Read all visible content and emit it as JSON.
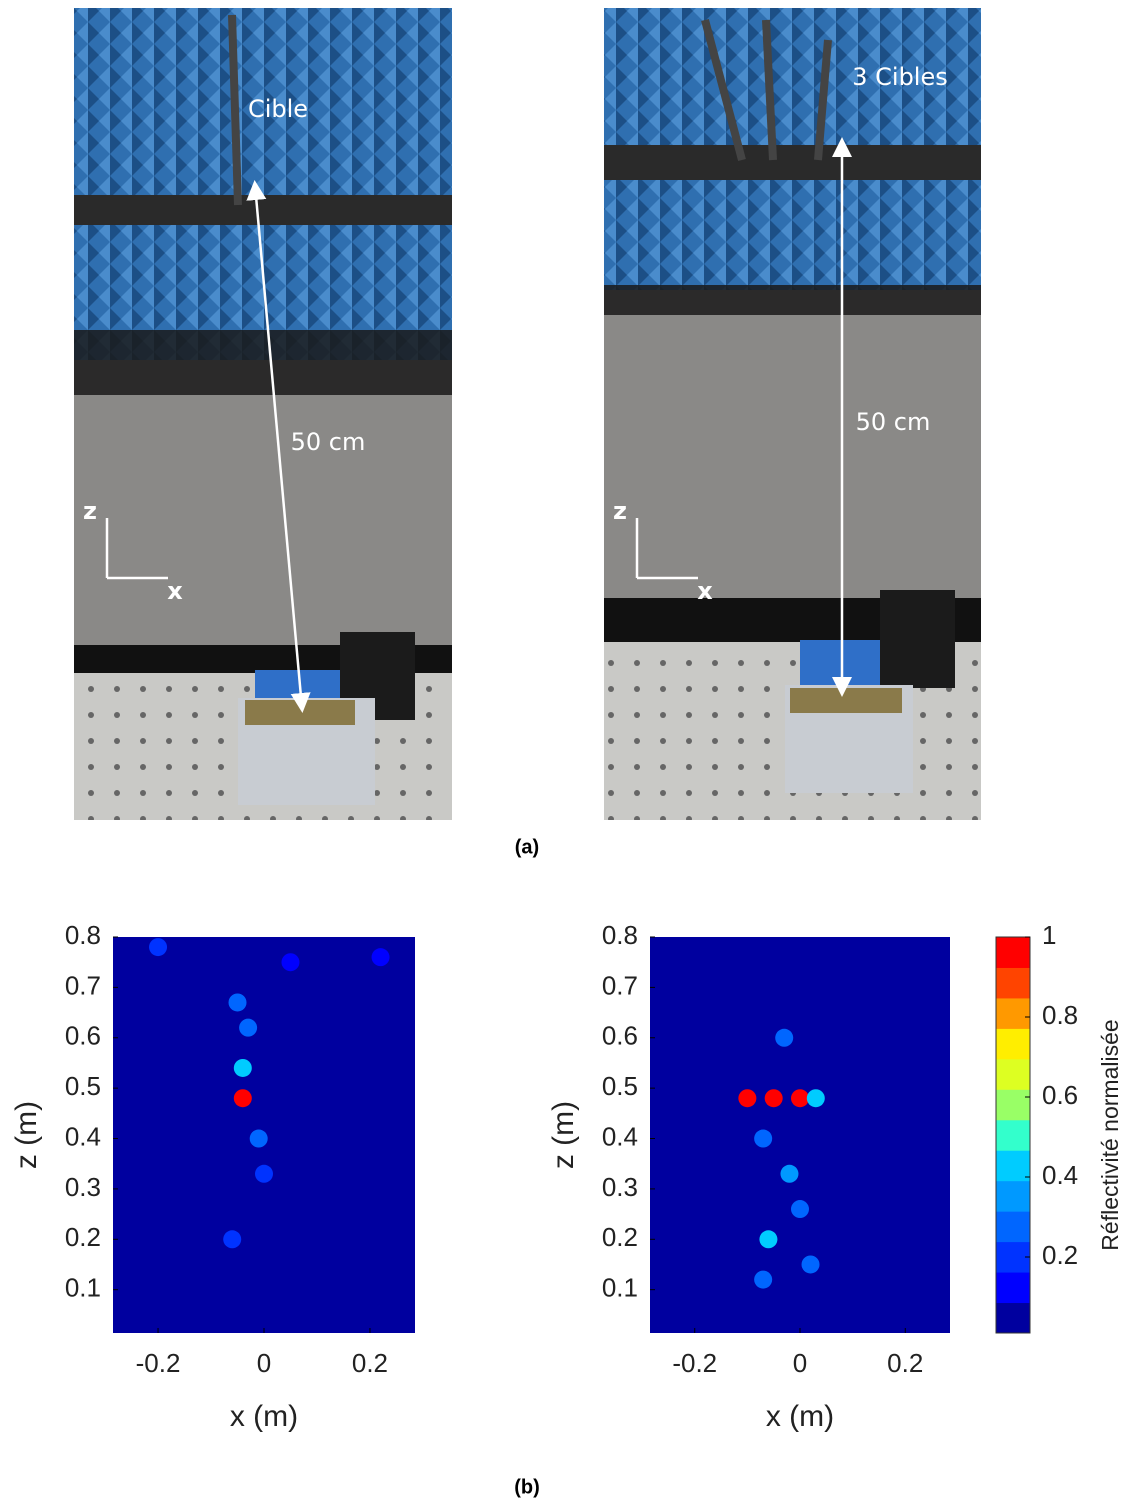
{
  "photos": [
    {
      "target_label": "Cible",
      "distance_label": "50 cm",
      "z_axis": "z",
      "x_axis": "x"
    },
    {
      "target_label": "3 Cibles",
      "distance_label": "50 cm",
      "z_axis": "z",
      "x_axis": "x"
    }
  ],
  "caption_a": "(a)",
  "chart_data": [
    {
      "type": "heatmap",
      "xlabel": "x (m)",
      "ylabel": "z (m)",
      "xlim": [
        -0.285,
        0.285
      ],
      "ylim": [
        0.014,
        0.8
      ],
      "xticks": [
        -0.2,
        0,
        0.2
      ],
      "yticks": [
        0.1,
        0.2,
        0.3,
        0.4,
        0.5,
        0.6,
        0.7,
        0.8
      ],
      "spots": [
        {
          "x": -0.04,
          "z": 0.48,
          "value": 1
        },
        {
          "x": -0.04,
          "z": 0.54,
          "value": 0.45
        },
        {
          "x": -0.05,
          "z": 0.67,
          "value": 0.3
        },
        {
          "x": -0.03,
          "z": 0.62,
          "value": 0.25
        },
        {
          "x": -0.01,
          "z": 0.4,
          "value": 0.25
        },
        {
          "x": 0.0,
          "z": 0.33,
          "value": 0.2
        },
        {
          "x": -0.06,
          "z": 0.2,
          "value": 0.2
        },
        {
          "x": -0.2,
          "z": 0.78,
          "value": 0.2
        },
        {
          "x": 0.05,
          "z": 0.75,
          "value": 0.15
        },
        {
          "x": 0.22,
          "z": 0.76,
          "value": 0.15
        }
      ]
    },
    {
      "type": "heatmap",
      "xlabel": "x (m)",
      "ylabel": "z (m)",
      "xlim": [
        -0.285,
        0.285
      ],
      "ylim": [
        0.014,
        0.8
      ],
      "xticks": [
        -0.2,
        0,
        0.2
      ],
      "yticks": [
        0.1,
        0.2,
        0.3,
        0.4,
        0.5,
        0.6,
        0.7,
        0.8
      ],
      "spots": [
        {
          "x": -0.1,
          "z": 0.48,
          "value": 1
        },
        {
          "x": -0.05,
          "z": 0.48,
          "value": 1
        },
        {
          "x": 0.0,
          "z": 0.48,
          "value": 1
        },
        {
          "x": 0.03,
          "z": 0.48,
          "value": 0.4
        },
        {
          "x": -0.06,
          "z": 0.2,
          "value": 0.45
        },
        {
          "x": -0.02,
          "z": 0.33,
          "value": 0.35
        },
        {
          "x": 0.0,
          "z": 0.26,
          "value": 0.3
        },
        {
          "x": -0.07,
          "z": 0.12,
          "value": 0.3
        },
        {
          "x": -0.03,
          "z": 0.6,
          "value": 0.25
        },
        {
          "x": -0.07,
          "z": 0.4,
          "value": 0.3
        },
        {
          "x": 0.02,
          "z": 0.15,
          "value": 0.25
        }
      ],
      "colorbar": {
        "label": "Réflectivité normalisée",
        "clim": [
          0.01,
          1
        ],
        "ticks": [
          0.2,
          0.4,
          0.6,
          0.8,
          1
        ],
        "colors": [
          "#00009f",
          "#0000ff",
          "#0033ff",
          "#0066ff",
          "#0099ff",
          "#00ccff",
          "#33ffcc",
          "#99ff66",
          "#ddff22",
          "#ffee00",
          "#ff9900",
          "#ff4400",
          "#ff0000"
        ]
      }
    }
  ],
  "caption_b": "(b)"
}
